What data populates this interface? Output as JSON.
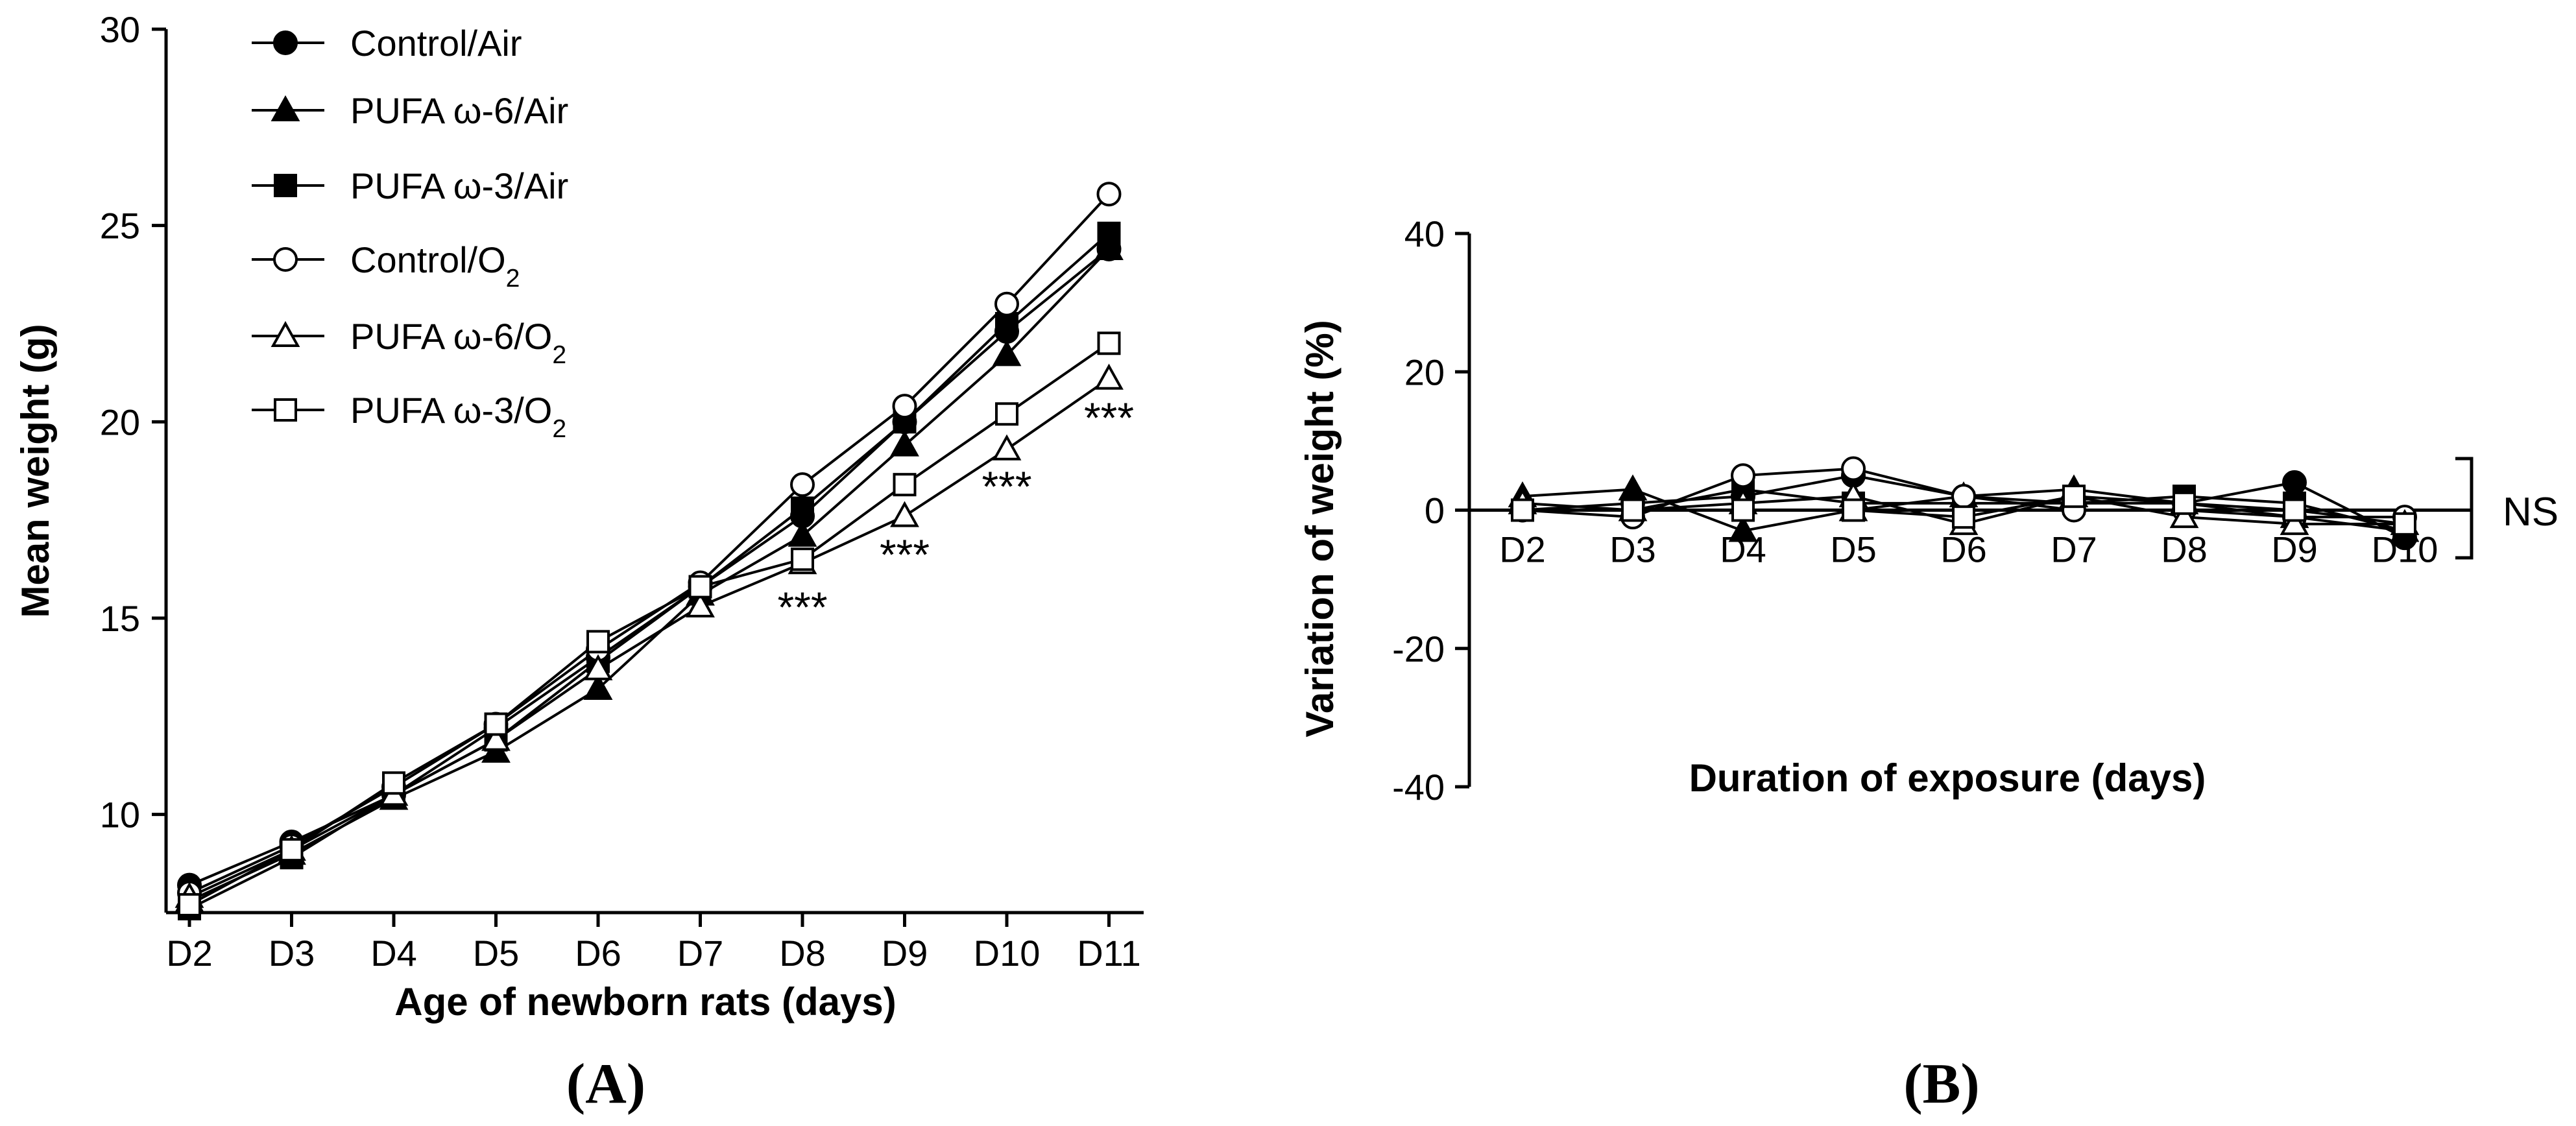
{
  "chart_data": [
    {
      "type": "line",
      "panel_label": "(A)",
      "xlabel": "Age of newborn rats (days)",
      "ylabel": "Mean weight (g)",
      "categories": [
        "D2",
        "D3",
        "D4",
        "D5",
        "D6",
        "D7",
        "D8",
        "D9",
        "D10",
        "D11"
      ],
      "yticks": [
        10,
        15,
        20,
        25,
        30
      ],
      "ylim": [
        7.5,
        30
      ],
      "legend_position": "top-left",
      "series": [
        {
          "name": "Control/Air",
          "marker": "filled-circle",
          "values": [
            8.2,
            9.3,
            10.5,
            12.2,
            14.0,
            15.8,
            17.6,
            20.0,
            22.3,
            24.4
          ]
        },
        {
          "name": "PUFA ω-6/Air",
          "marker": "filled-triangle",
          "values": [
            7.8,
            9.0,
            10.4,
            11.6,
            13.2,
            15.6,
            17.1,
            19.4,
            21.7,
            24.4
          ]
        },
        {
          "name": "PUFA ω-3/Air",
          "marker": "filled-square",
          "values": [
            7.6,
            8.9,
            10.5,
            11.9,
            13.9,
            15.8,
            17.8,
            20.0,
            22.5,
            24.8
          ]
        },
        {
          "name": "Control/O₂",
          "marker": "open-circle",
          "values": [
            8.0,
            9.2,
            10.7,
            12.3,
            14.2,
            15.9,
            18.4,
            20.4,
            23.0,
            25.8
          ]
        },
        {
          "name": "PUFA ω-6/O₂",
          "marker": "open-triangle",
          "values": [
            7.9,
            9.1,
            10.5,
            11.9,
            13.7,
            15.3,
            16.4,
            17.6,
            19.3,
            21.1
          ]
        },
        {
          "name": "PUFA ω-3/O₂",
          "marker": "open-square",
          "values": [
            7.7,
            9.1,
            10.8,
            12.3,
            14.4,
            15.8,
            16.5,
            18.4,
            20.2,
            22.0
          ]
        }
      ],
      "annotations": [
        {
          "category": "D8",
          "text": "***"
        },
        {
          "category": "D9",
          "text": "***"
        },
        {
          "category": "D10",
          "text": "***"
        },
        {
          "category": "D11",
          "text": "***"
        }
      ]
    },
    {
      "type": "line",
      "panel_label": "(B)",
      "xlabel": "Duration of exposure (days)",
      "ylabel": "Variation of weight (%)",
      "categories": [
        "D2",
        "D3",
        "D4",
        "D5",
        "D6",
        "D7",
        "D8",
        "D9",
        "D10"
      ],
      "yticks": [
        -40,
        -20,
        0,
        20,
        40
      ],
      "ylim": [
        -40,
        40
      ],
      "significance": "NS",
      "series": [
        {
          "marker": "filled-circle",
          "values": [
            0,
            1,
            2,
            5,
            2,
            1,
            1,
            4,
            -4
          ]
        },
        {
          "marker": "filled-triangle",
          "values": [
            2,
            3,
            -3,
            0,
            2,
            3,
            1,
            -1,
            -3
          ]
        },
        {
          "marker": "filled-square",
          "values": [
            0,
            0,
            3,
            1,
            1,
            1,
            2,
            1,
            -3
          ]
        },
        {
          "marker": "open-circle",
          "values": [
            0,
            -1,
            5,
            6,
            2,
            0,
            0,
            -1,
            -1
          ]
        },
        {
          "marker": "open-triangle",
          "values": [
            1,
            0,
            1,
            2,
            -2,
            2,
            -1,
            -2,
            -2
          ]
        },
        {
          "marker": "open-square",
          "values": [
            0,
            0,
            0,
            0,
            -1,
            2,
            1,
            0,
            -2
          ]
        }
      ]
    }
  ]
}
